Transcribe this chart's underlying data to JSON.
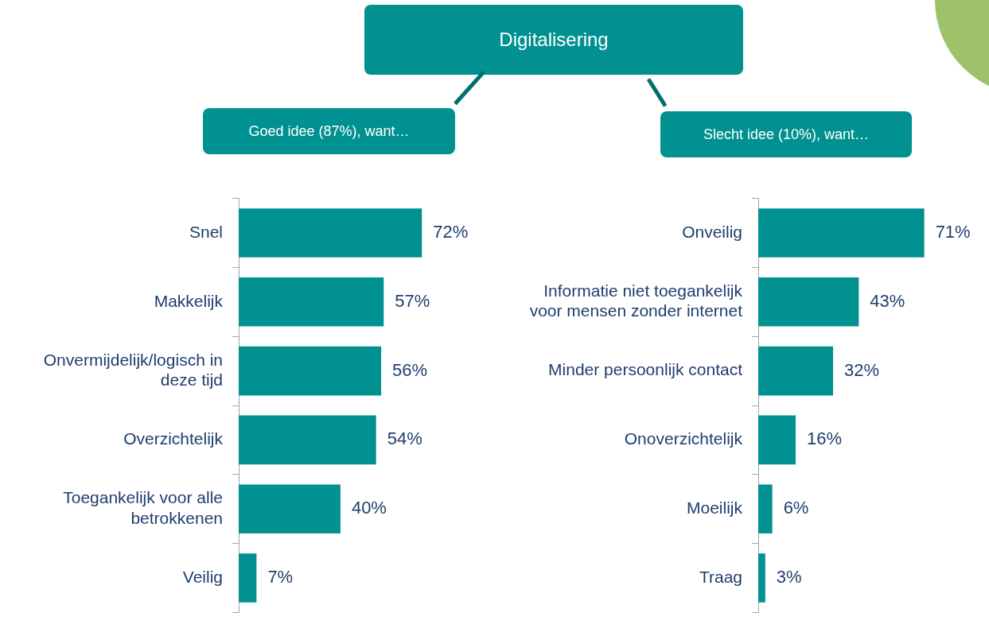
{
  "chart_data": [
    {
      "type": "bar",
      "orientation": "horizontal",
      "subtitle": "Goed idee (87%), want…",
      "categories": [
        "Snel",
        "Makkelijk",
        "Onvermijdelijk/logisch in deze tijd",
        "Overzichtelijk",
        "Toegankelijk voor alle betrokkenen",
        "Veilig"
      ],
      "values": [
        72,
        57,
        56,
        54,
        40,
        7
      ],
      "value_labels": [
        "72%",
        "57%",
        "56%",
        "54%",
        "40%",
        "7%"
      ],
      "color": "#009190"
    },
    {
      "type": "bar",
      "orientation": "horizontal",
      "title": "Digitalisering",
      "subtitle": "Slecht idee (10%), want…",
      "categories": [
        "Onveilig",
        "Informatie niet toegankelijk voor mensen zonder internet",
        "Minder persoonlijk contact",
        "Onoverzichtelijk",
        "Moeilijk",
        "Traag"
      ],
      "values": [
        71,
        43,
        32,
        16,
        6,
        3
      ],
      "value_labels": [
        "71%",
        "43%",
        "32%",
        "16%",
        "6%",
        "3%"
      ],
      "color": "#009190"
    }
  ]
}
